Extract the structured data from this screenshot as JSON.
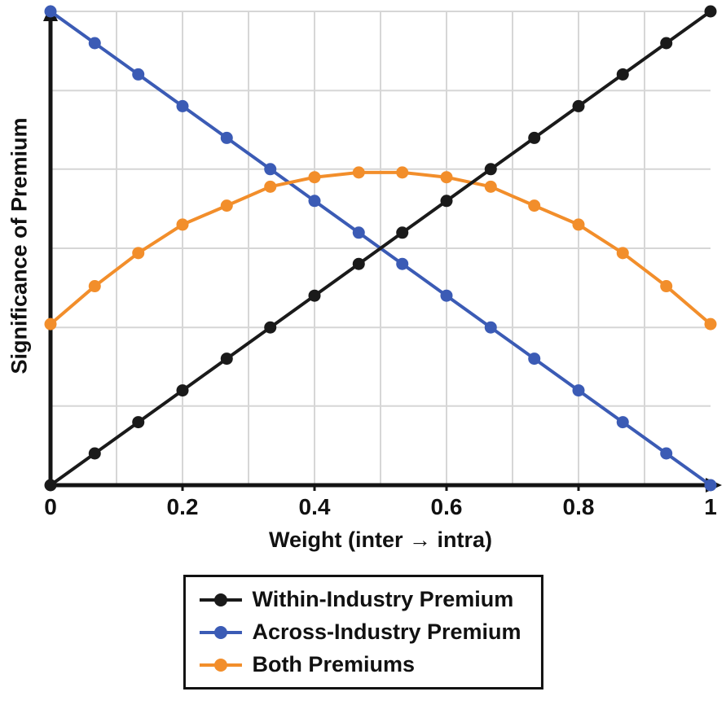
{
  "figure": {
    "background": "#ffffff"
  },
  "chart_data": {
    "type": "line",
    "title": "",
    "xlabel": "Weight (inter → intra)",
    "ylabel": "Significance of Premium",
    "xlim": [
      0,
      1
    ],
    "ylim": [
      0,
      1
    ],
    "x": [
      0,
      0.067,
      0.133,
      0.2,
      0.267,
      0.333,
      0.4,
      0.467,
      0.533,
      0.6,
      0.667,
      0.733,
      0.8,
      0.867,
      0.933,
      1
    ],
    "series": [
      {
        "name": "Within-Industry Premium",
        "color": "#1a1a1a",
        "values": [
          0,
          0.067,
          0.133,
          0.2,
          0.267,
          0.333,
          0.4,
          0.467,
          0.533,
          0.6,
          0.667,
          0.733,
          0.8,
          0.867,
          0.933,
          1
        ]
      },
      {
        "name": "Across-Industry Premium",
        "color": "#3b5bb5",
        "values": [
          1,
          0.933,
          0.867,
          0.8,
          0.733,
          0.667,
          0.6,
          0.533,
          0.467,
          0.4,
          0.333,
          0.267,
          0.2,
          0.133,
          0.067,
          0
        ]
      },
      {
        "name": "Both Premiums",
        "color": "#f28e2b",
        "values": [
          0.34,
          0.42,
          0.49,
          0.55,
          0.59,
          0.63,
          0.65,
          0.66,
          0.66,
          0.65,
          0.63,
          0.59,
          0.55,
          0.49,
          0.42,
          0.34
        ]
      }
    ],
    "xticks": {
      "values": [
        0,
        0.2,
        0.4,
        0.6,
        0.8,
        1
      ],
      "labels": [
        "0",
        "0.2",
        "0.4",
        "0.6",
        "0.8",
        "1"
      ]
    },
    "grid": {
      "x_values": [
        0.1,
        0.2,
        0.3,
        0.4,
        0.5,
        0.6,
        0.7,
        0.8,
        0.9
      ],
      "y_values": [
        0.167,
        0.333,
        0.5,
        0.667,
        0.833,
        1.0
      ],
      "color": "#d6d6d6"
    },
    "axis_color": "#141414",
    "marker": "circle",
    "legend_position": "bottom"
  },
  "legend": {
    "items": [
      {
        "label": "Within-Industry Premium",
        "color": "#1a1a1a"
      },
      {
        "label": "Across-Industry Premium",
        "color": "#3b5bb5"
      },
      {
        "label": "Both Premiums",
        "color": "#f28e2b"
      }
    ]
  }
}
